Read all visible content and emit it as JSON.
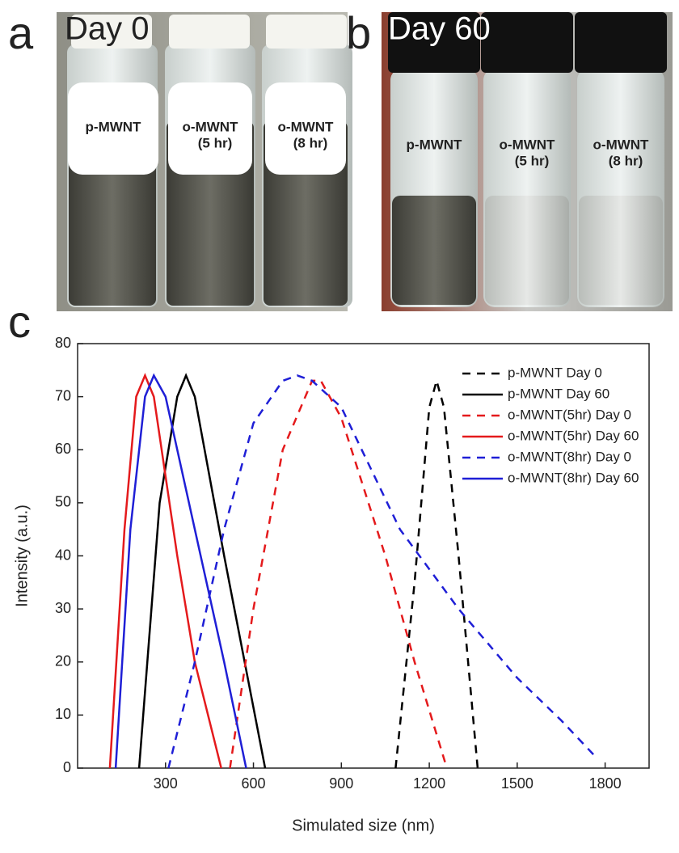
{
  "panels": {
    "a": {
      "letter": "a",
      "title": "Day 0",
      "vials": [
        [
          "p-MWNT"
        ],
        [
          "o-MWNT",
          "(5 hr)"
        ],
        [
          "o-MWNT",
          "(8 hr)"
        ]
      ]
    },
    "b": {
      "letter": "b",
      "title": "Day 60",
      "vials": [
        [
          "p-MWNT"
        ],
        [
          "o-MWNT",
          "(5 hr)"
        ],
        [
          "o-MWNT",
          "(8 hr)"
        ]
      ]
    },
    "c": {
      "letter": "c"
    }
  },
  "chart_data": {
    "type": "line",
    "x_label": "Simulated size (nm)",
    "y_label": "Intensity (a.u.)",
    "xlim": [
      0,
      1950
    ],
    "ylim": [
      0,
      80
    ],
    "xticks": [
      300,
      600,
      900,
      1200,
      1500,
      1800
    ],
    "yticks": [
      0,
      10,
      20,
      30,
      40,
      50,
      60,
      70,
      80
    ],
    "legend": "top-right",
    "series": [
      {
        "name": "p-MWNT Day 0",
        "color": "#000000",
        "dashed": true,
        "x": [
          1085,
          1150,
          1200,
          1225,
          1250,
          1300,
          1365
        ],
        "values": [
          0,
          35,
          68,
          73,
          68,
          40,
          0
        ]
      },
      {
        "name": "p-MWNT Day 60",
        "color": "#000000",
        "dashed": false,
        "x": [
          210,
          280,
          340,
          370,
          400,
          500,
          640
        ],
        "values": [
          0,
          50,
          70,
          74,
          70,
          40,
          0
        ]
      },
      {
        "name": "o-MWNT(5hr) Day 0",
        "color": "#e41a1c",
        "dashed": true,
        "x": [
          520,
          600,
          700,
          800,
          830,
          900,
          1050,
          1150,
          1260
        ],
        "values": [
          0,
          30,
          60,
          73,
          73,
          66,
          40,
          20,
          0
        ]
      },
      {
        "name": "o-MWNT(5hr) Day 60",
        "color": "#e41a1c",
        "dashed": false,
        "x": [
          110,
          160,
          200,
          230,
          260,
          340,
          400,
          490
        ],
        "values": [
          0,
          45,
          70,
          74,
          70,
          40,
          20,
          0
        ]
      },
      {
        "name": "o-MWNT(8hr) Day 0",
        "color": "#1f1fd6",
        "dashed": true,
        "x": [
          310,
          400,
          500,
          600,
          700,
          750,
          800,
          900,
          1100,
          1300,
          1500,
          1650,
          1770
        ],
        "values": [
          0,
          20,
          45,
          65,
          73,
          74,
          73,
          68,
          45,
          30,
          17,
          9,
          2
        ]
      },
      {
        "name": "o-MWNT(8hr) Day 60",
        "color": "#1f1fd6",
        "dashed": false,
        "x": [
          130,
          180,
          230,
          260,
          300,
          400,
          500,
          575
        ],
        "values": [
          0,
          45,
          70,
          74,
          70,
          45,
          20,
          0
        ]
      }
    ]
  }
}
